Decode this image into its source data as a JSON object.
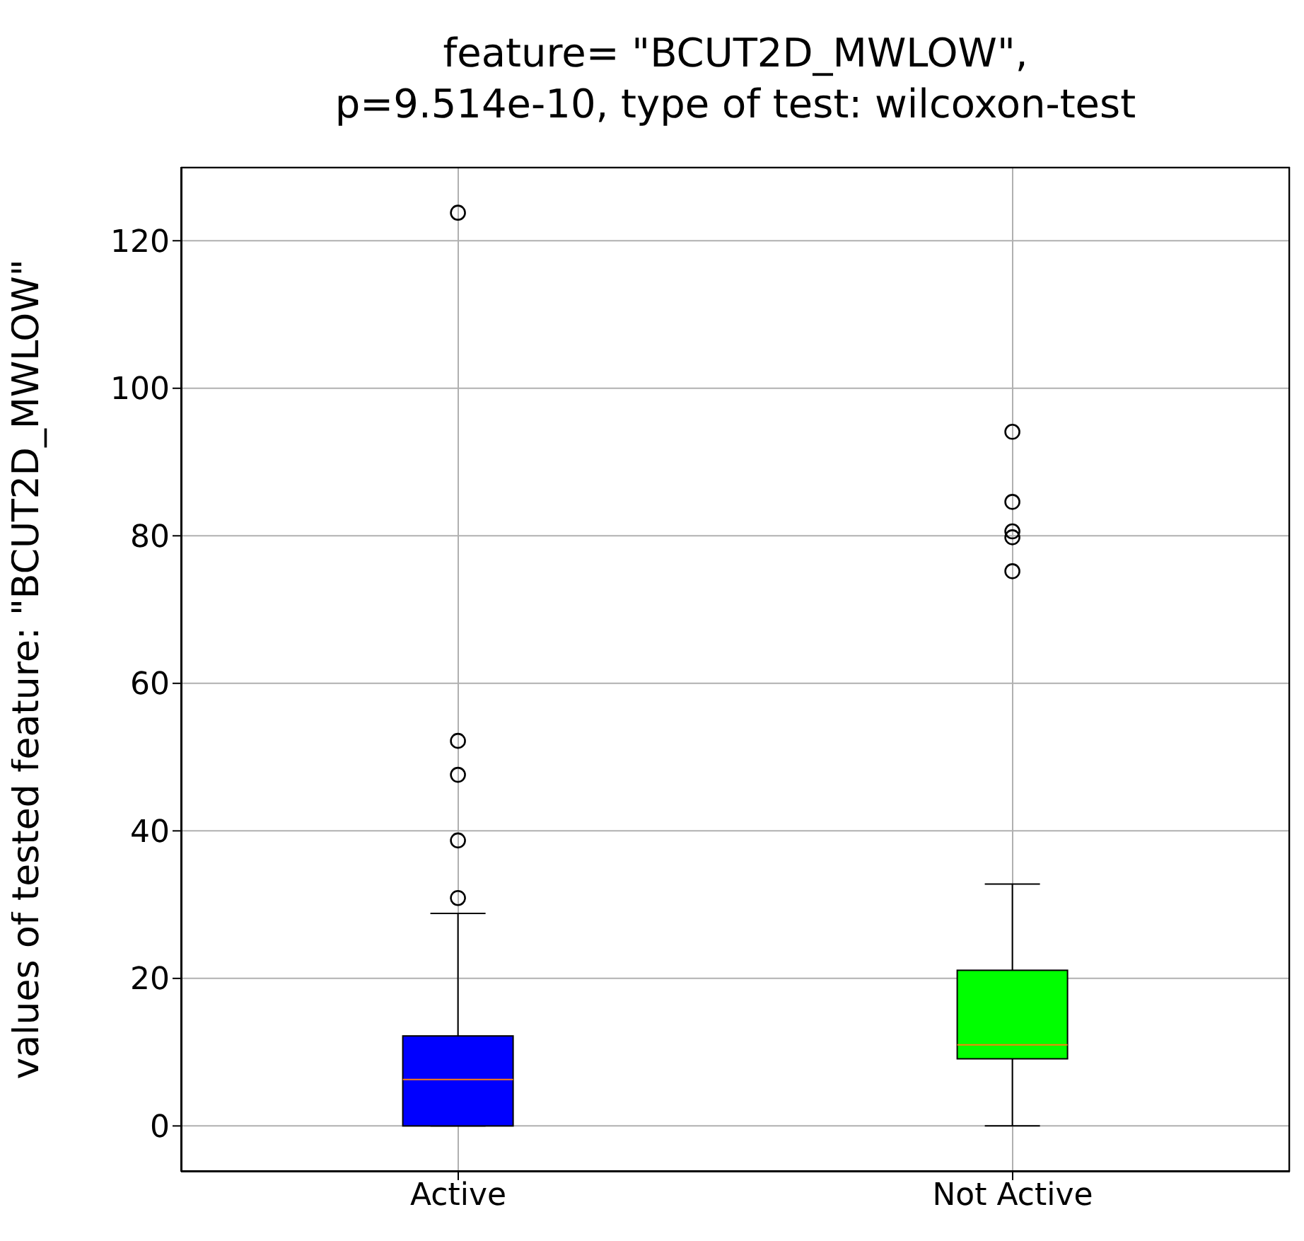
{
  "chart_data": {
    "type": "box",
    "title": "feature= \"BCUT2D_MWLOW\",\np=9.514e-10, type of test: wilcoxon-test",
    "ylabel": "values of tested feature: \"BCUT2D_MWLOW\"",
    "categories": [
      "Active",
      "Not Active"
    ],
    "colors": [
      "#0000ff",
      "#00ff00"
    ],
    "boxes": [
      {
        "low": 0,
        "q1": 0,
        "median": 6.3,
        "q3": 12.2,
        "high": 28.8,
        "outliers": [
          30.9,
          38.7,
          47.6,
          52.2,
          123.8
        ]
      },
      {
        "low": 0,
        "q1": 9.1,
        "median": 11.0,
        "q3": 21.1,
        "high": 32.8,
        "outliers": [
          75.2,
          79.8,
          80.6,
          84.6,
          94.1
        ]
      }
    ],
    "ylim": [
      -6.2,
      130
    ],
    "yticks": [
      0,
      20,
      40,
      60,
      80,
      100,
      120
    ],
    "grid": true,
    "legend": false,
    "marker": "circle"
  }
}
